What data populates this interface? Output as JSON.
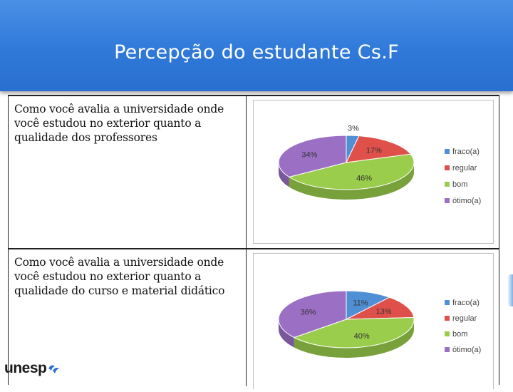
{
  "slide": {
    "title": "Percepção do estudante Cs.F",
    "logo_text": "unesp"
  },
  "questions": [
    "Como você avalia a universidade onde você estudou no exterior quanto a qualidade dos professores",
    "Como você avalia a universidade onde você estudou no exterior quanto a qualidade do curso e material didático"
  ],
  "chart_data": [
    {
      "type": "pie",
      "title": "",
      "categories": [
        "fraco(a)",
        "regular",
        "bom",
        "ótimo(a)"
      ],
      "values": [
        3,
        17,
        46,
        34
      ],
      "value_labels": [
        "3%",
        "17%",
        "46%",
        "34%"
      ],
      "colors": [
        "#4f8fd6",
        "#e0504a",
        "#9acd4c",
        "#9b6fc4"
      ],
      "legend": "right",
      "style": "3d"
    },
    {
      "type": "pie",
      "title": "",
      "categories": [
        "fraco(a)",
        "regular",
        "bom",
        "ótimo(a)"
      ],
      "values": [
        11,
        13,
        40,
        36
      ],
      "value_labels": [
        "11%",
        "13%",
        "40%",
        "36%"
      ],
      "colors": [
        "#4f8fd6",
        "#e0504a",
        "#9acd4c",
        "#9b6fc4"
      ],
      "legend": "right",
      "style": "3d"
    }
  ]
}
